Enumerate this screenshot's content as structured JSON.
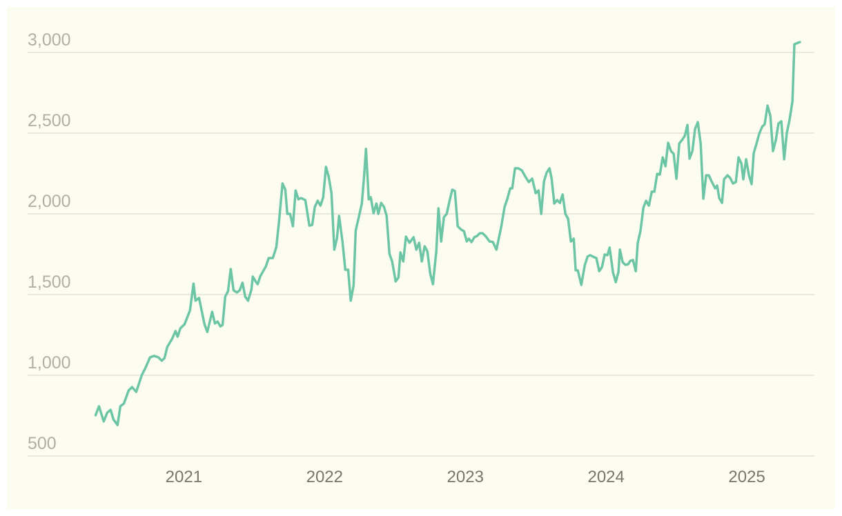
{
  "chart_data": {
    "type": "line",
    "x": [
      2020.373,
      2020.397,
      2020.431,
      2020.456,
      2020.48,
      2020.5,
      2020.529,
      2020.549,
      2020.574,
      2020.608,
      2020.632,
      2020.662,
      2020.701,
      2020.73,
      2020.76,
      2020.789,
      2020.819,
      2020.843,
      2020.863,
      2020.882,
      2020.917,
      2020.941,
      2020.956,
      2020.975,
      2021.005,
      2021.044,
      2021.069,
      2021.083,
      2021.108,
      2021.147,
      2021.167,
      2021.201,
      2021.221,
      2021.24,
      2021.26,
      2021.275,
      2021.294,
      2021.314,
      2021.333,
      2021.353,
      2021.377,
      2021.397,
      2021.417,
      2021.436,
      2021.456,
      2021.48,
      2021.49,
      2021.51,
      2021.525,
      2021.544,
      2021.583,
      2021.603,
      2021.632,
      2021.657,
      2021.676,
      2021.701,
      2021.721,
      2021.735,
      2021.755,
      2021.775,
      2021.794,
      2021.814,
      2021.833,
      2021.863,
      2021.892,
      2021.912,
      2021.931,
      2021.951,
      2021.971,
      2021.99,
      2022.01,
      2022.029,
      2022.049,
      2022.069,
      2022.088,
      2022.103,
      2022.127,
      2022.147,
      2022.167,
      2022.186,
      2022.206,
      2022.221,
      2022.245,
      2022.265,
      2022.279,
      2022.294,
      2022.314,
      2022.328,
      2022.348,
      2022.368,
      2022.382,
      2022.402,
      2022.422,
      2022.441,
      2022.461,
      2022.48,
      2022.505,
      2022.525,
      2022.539,
      2022.559,
      2022.578,
      2022.603,
      2022.632,
      2022.652,
      2022.672,
      2022.691,
      2022.711,
      2022.73,
      2022.75,
      2022.77,
      2022.794,
      2022.809,
      2022.828,
      2022.848,
      2022.868,
      2022.887,
      2022.907,
      2022.926,
      2022.946,
      2022.971,
      2022.99,
      2023.01,
      2023.025,
      2023.044,
      2023.064,
      2023.083,
      2023.103,
      2023.123,
      2023.147,
      2023.172,
      2023.196,
      2023.221,
      2023.255,
      2023.279,
      2023.299,
      2023.319,
      2023.333,
      2023.353,
      2023.377,
      2023.402,
      2023.426,
      2023.451,
      2023.475,
      2023.5,
      2023.52,
      2023.539,
      2023.559,
      2023.578,
      2023.598,
      2023.613,
      2023.632,
      2023.652,
      2023.672,
      2023.691,
      2023.711,
      2023.73,
      2023.75,
      2023.77,
      2023.784,
      2023.799,
      2023.824,
      2023.848,
      2023.868,
      2023.887,
      2023.907,
      2023.931,
      2023.951,
      2023.971,
      2023.99,
      2024.01,
      2024.025,
      2024.049,
      2024.069,
      2024.088,
      2024.098,
      2024.118,
      2024.137,
      2024.157,
      2024.172,
      2024.191,
      2024.211,
      2024.225,
      2024.245,
      2024.265,
      2024.284,
      2024.304,
      2024.324,
      2024.343,
      2024.363,
      2024.382,
      2024.402,
      2024.422,
      2024.441,
      2024.461,
      2024.48,
      2024.5,
      2024.52,
      2024.539,
      2024.559,
      2024.578,
      2024.593,
      2024.613,
      2024.632,
      2024.652,
      2024.672,
      2024.691,
      2024.711,
      2024.73,
      2024.75,
      2024.775,
      2024.789,
      2024.804,
      2024.824,
      2024.838,
      2024.863,
      2024.882,
      2024.902,
      2024.922,
      2024.941,
      2024.961,
      2024.975,
      2024.995,
      2025.015,
      2025.034,
      2025.049,
      2025.069,
      2025.088,
      2025.108,
      2025.127,
      2025.147,
      2025.167,
      2025.186,
      2025.206,
      2025.225,
      2025.245,
      2025.265,
      2025.284,
      2025.304,
      2025.324,
      2025.338,
      2025.377
    ],
    "series": [
      {
        "color": "#6cc5a5",
        "values": [
          752,
          808,
          714,
          769,
          786,
          726,
          692,
          808,
          825,
          906,
          927,
          897,
          1000,
          1051,
          1111,
          1120,
          1111,
          1090,
          1107,
          1175,
          1226,
          1274,
          1239,
          1291,
          1316,
          1402,
          1568,
          1462,
          1479,
          1316,
          1269,
          1393,
          1321,
          1333,
          1303,
          1312,
          1487,
          1521,
          1658,
          1526,
          1513,
          1526,
          1573,
          1487,
          1462,
          1530,
          1611,
          1581,
          1564,
          1615,
          1675,
          1726,
          1726,
          1795,
          1949,
          2188,
          2150,
          2000,
          2000,
          1923,
          2145,
          2090,
          2098,
          2085,
          1927,
          1932,
          2043,
          2081,
          2051,
          2103,
          2291,
          2231,
          2128,
          1778,
          1850,
          1987,
          1829,
          1654,
          1654,
          1462,
          1556,
          1897,
          1987,
          2064,
          2214,
          2402,
          2090,
          2103,
          2004,
          2064,
          2000,
          2068,
          2043,
          1987,
          1752,
          1705,
          1581,
          1607,
          1761,
          1705,
          1859,
          1821,
          1855,
          1778,
          1821,
          1705,
          1799,
          1769,
          1632,
          1564,
          1769,
          2034,
          1829,
          1979,
          2000,
          2077,
          2150,
          2141,
          1923,
          1902,
          1893,
          1829,
          1846,
          1825,
          1855,
          1863,
          1880,
          1880,
          1859,
          1829,
          1825,
          1778,
          1919,
          2043,
          2094,
          2158,
          2158,
          2282,
          2282,
          2269,
          2231,
          2197,
          2218,
          2128,
          2145,
          2000,
          2201,
          2256,
          2282,
          2218,
          2064,
          2085,
          2068,
          2120,
          2000,
          1970,
          1829,
          1846,
          1650,
          1650,
          1560,
          1680,
          1735,
          1744,
          1735,
          1726,
          1645,
          1671,
          1748,
          1744,
          1791,
          1637,
          1577,
          1641,
          1778,
          1701,
          1684,
          1688,
          1709,
          1714,
          1645,
          1821,
          1897,
          2038,
          2081,
          2051,
          2137,
          2137,
          2248,
          2244,
          2350,
          2295,
          2440,
          2389,
          2372,
          2218,
          2436,
          2457,
          2483,
          2551,
          2342,
          2389,
          2526,
          2568,
          2436,
          2094,
          2239,
          2239,
          2201,
          2158,
          2175,
          2098,
          2068,
          2214,
          2239,
          2222,
          2188,
          2197,
          2350,
          2312,
          2214,
          2338,
          2239,
          2184,
          2376,
          2436,
          2496,
          2538,
          2556,
          2671,
          2607,
          2389,
          2457,
          2560,
          2573,
          2338,
          2500,
          2585,
          2697,
          3051,
          3064
        ]
      }
    ],
    "xlim": [
      2019.89,
      2025.48
    ],
    "xticks": [
      2021,
      2022,
      2023,
      2024,
      2025
    ],
    "ylim": [
      500,
      3000
    ],
    "yticks": [
      500,
      {
        "value": 1000,
        "label": "1,000"
      },
      {
        "value": 1500,
        "label": "1,500"
      },
      {
        "value": 2000,
        "label": "2,000"
      },
      {
        "value": 2500,
        "label": "2,500"
      },
      {
        "value": 3000,
        "label": "3,000"
      }
    ],
    "grid": true
  }
}
